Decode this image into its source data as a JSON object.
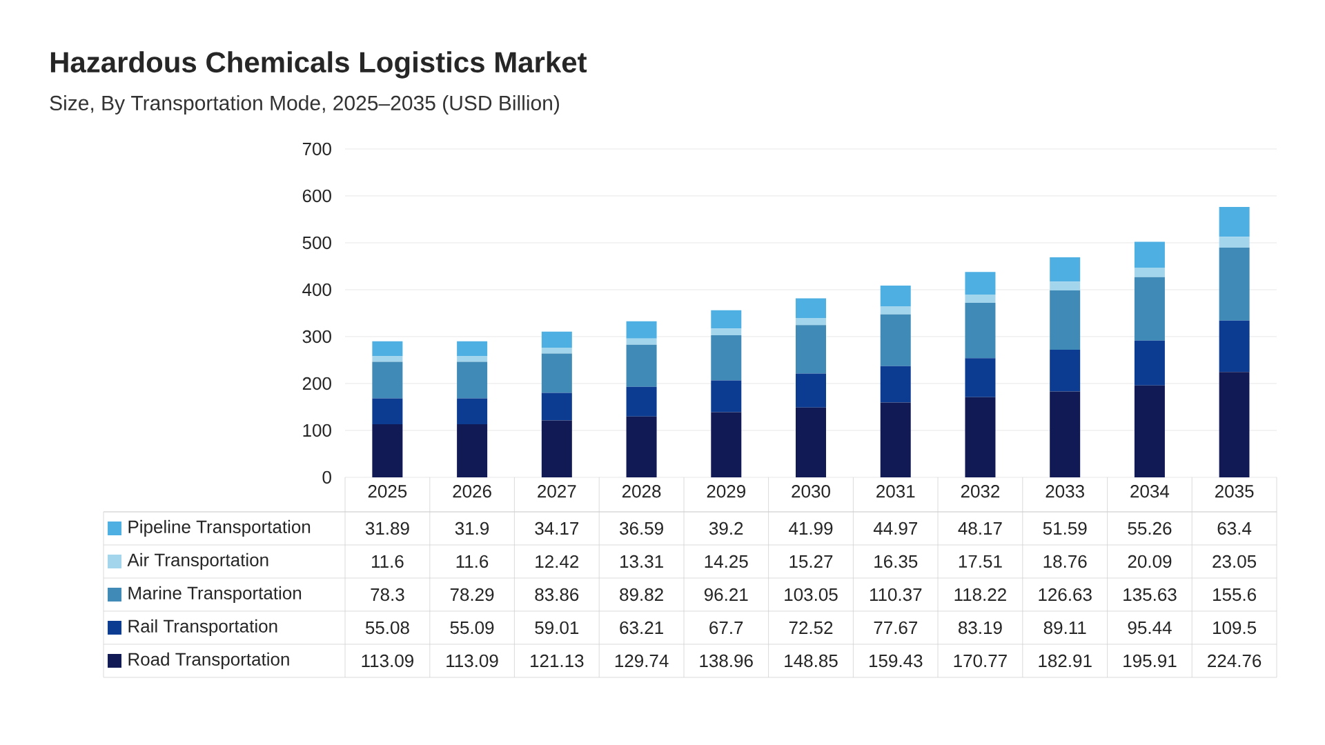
{
  "chart_data": {
    "type": "bar",
    "stacked": true,
    "title": "Hazardous Chemicals Logistics Market",
    "subtitle": "Size, By Transportation Mode, 2025–2035 (USD Billion)",
    "categories": [
      "2025",
      "2026",
      "2027",
      "2028",
      "2029",
      "2030",
      "2031",
      "2032",
      "2033",
      "2034",
      "2035"
    ],
    "series": [
      {
        "name": "Road Transportation",
        "color": "#111a55",
        "values": [
          113.09,
          113.09,
          121.13,
          129.74,
          138.96,
          148.85,
          159.43,
          170.77,
          182.91,
          195.91,
          224.76
        ]
      },
      {
        "name": "Rail Transportation",
        "color": "#0b3c92",
        "values": [
          55.08,
          55.09,
          59.01,
          63.21,
          67.7,
          72.52,
          77.67,
          83.19,
          89.11,
          95.44,
          109.5
        ]
      },
      {
        "name": "Marine Transportation",
        "color": "#3f8ab6",
        "values": [
          78.3,
          78.29,
          83.86,
          89.82,
          96.21,
          103.05,
          110.37,
          118.22,
          126.63,
          135.63,
          155.6
        ]
      },
      {
        "name": "Air Transportation",
        "color": "#a3d5ec",
        "values": [
          11.6,
          11.6,
          12.42,
          13.31,
          14.25,
          15.27,
          16.35,
          17.51,
          18.76,
          20.09,
          23.05
        ]
      },
      {
        "name": "Pipeline Transportation",
        "color": "#4eb0e2",
        "values": [
          31.89,
          31.9,
          34.17,
          36.59,
          39.2,
          41.99,
          44.97,
          48.17,
          51.59,
          55.26,
          63.4
        ]
      }
    ],
    "ylim": [
      0,
      700
    ],
    "yticks": [
      0,
      100,
      200,
      300,
      400,
      500,
      600,
      700
    ],
    "grid": "y",
    "legend": "bottom",
    "data_labels": true
  }
}
